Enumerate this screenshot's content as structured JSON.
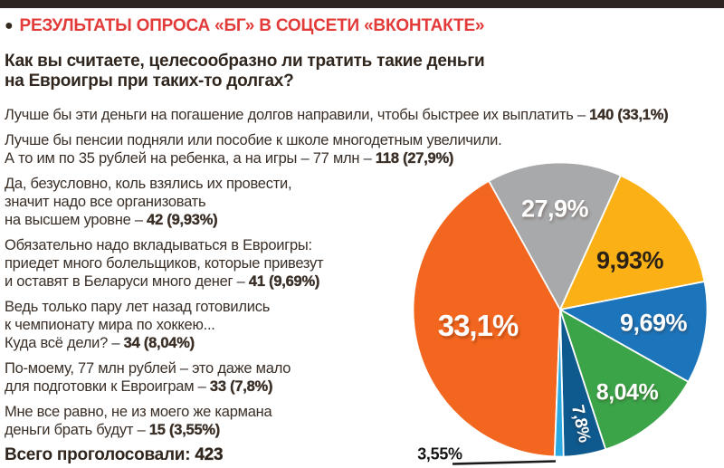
{
  "page": {
    "background": "#FFFFFF",
    "accent_red": "#E23B3A",
    "topbar_color": "#2D2422",
    "body_text_color": "#3A2F27"
  },
  "header": {
    "bullet": "●",
    "title": "РЕЗУЛЬТАТЫ ОПРОСА «БГ» В СОЦСЕТИ «ВКОНТАКТЕ»"
  },
  "question": {
    "lines": [
      "Как вы считаете, целесообразно ли тратить такие деньги",
      "на Евроигры при таких-то долгах?"
    ]
  },
  "answers": [
    {
      "lines": [
        "Лучше бы эти деньги на погашение долгов направили, чтобы быстрее их выплатить – "
      ],
      "bold": "140 (33,1%)"
    },
    {
      "lines": [
        "Лучше бы пенсии подняли или пособие к школе многодетным увеличили.",
        "А то им по 35 рублей на ребенка, а на игры – 77 млн – "
      ],
      "bold": "118 (27,9%)"
    },
    {
      "lines": [
        "Да, безусловно, коль взялись их провести,",
        "значит надо все организовать",
        "на высшем уровне – "
      ],
      "bold": "42 (9,93%)"
    },
    {
      "lines": [
        "Обязательно надо вкладываться в Евроигры:",
        "приедет много болельщиков, которые привезут",
        "и оставят в Беларуси много денег – "
      ],
      "bold": "41 (9,69%)"
    },
    {
      "lines": [
        "Ведь только пару лет назад готовились",
        "к чемпионату мира по хоккею...",
        "Куда всё дели? – "
      ],
      "bold": "34 (8,04%)"
    },
    {
      "lines": [
        "По-моему, 77 млн рублей – это даже мало",
        "для подготовки к Евроиграм – "
      ],
      "bold": "33 (7,8%)"
    },
    {
      "lines": [
        "Мне все равно, не из моего же кармана",
        "деньги брать будут – "
      ],
      "bold": "15 (3,55%)"
    }
  ],
  "total": {
    "label": "Всего проголосовали:",
    "value": "423"
  },
  "chart_data": {
    "type": "pie",
    "title": "Результаты опроса «БГ» в соцсети «ВКонтакте»",
    "total_votes": 423,
    "legend_position": "labels-on-slices",
    "slices": [
      {
        "label": "33,1%",
        "value_pct": 33.1,
        "votes": 140,
        "color": "#F2661F",
        "text_color": "#FFFFFF",
        "start_deg": 182.2,
        "end_deg": 331.0
      },
      {
        "label": "27,9%",
        "value_pct": 27.9,
        "votes": 118,
        "color": "#A7A9AB",
        "text_color": "#FFFFFF",
        "start_deg": 331.0,
        "end_deg": 384.3
      },
      {
        "label": "9,93%",
        "value_pct": 9.93,
        "votes": 42,
        "color": "#FBB116",
        "text_color": "#2B2115",
        "start_deg": 24.3,
        "end_deg": 79.0
      },
      {
        "label": "9,69%",
        "value_pct": 9.69,
        "votes": 41,
        "color": "#1C75BB",
        "text_color": "#FFFFFF",
        "start_deg": 79.0,
        "end_deg": 119.4
      },
      {
        "label": "8,04%",
        "value_pct": 8.04,
        "votes": 34,
        "color": "#3BA449",
        "text_color": "#FFFFFF",
        "start_deg": 119.4,
        "end_deg": 162.0
      },
      {
        "label": "7,8%",
        "value_pct": 7.8,
        "votes": 33,
        "color": "#0E5A8F",
        "text_color": "#FFFFFF",
        "start_deg": 162.0,
        "end_deg": 178.7
      },
      {
        "label": "3,55%",
        "value_pct": 3.55,
        "votes": 15,
        "color": "#2BAAE2",
        "text_color": "#151515",
        "start_deg": 178.7,
        "end_deg": 182.2
      }
    ]
  }
}
